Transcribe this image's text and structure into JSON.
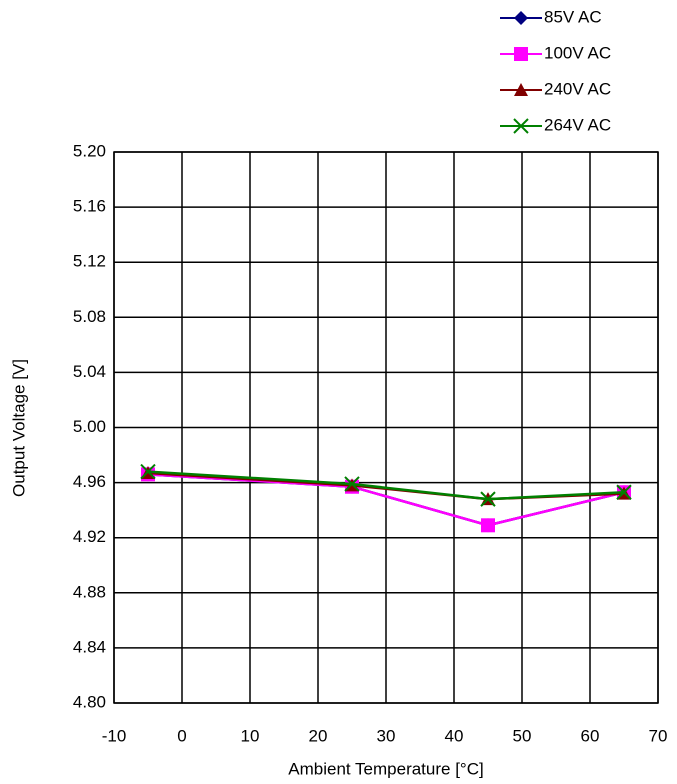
{
  "chart_data": {
    "type": "line",
    "x_label": "Ambient Temperature [°C]",
    "y_label": "Output Voltage [V]",
    "x": [
      -5,
      25,
      45,
      65
    ],
    "series": [
      {
        "name": "85V AC",
        "color": "#000080",
        "marker": "diamond",
        "values": [
          4.966,
          4.957,
          4.929,
          4.953
        ]
      },
      {
        "name": "100V AC",
        "color": "#ff00ff",
        "marker": "square",
        "values": [
          4.966,
          4.957,
          4.929,
          4.953
        ]
      },
      {
        "name": "240V AC",
        "color": "#800000",
        "marker": "triangle",
        "values": [
          4.967,
          4.958,
          4.948,
          4.952
        ]
      },
      {
        "name": "264V AC",
        "color": "#008000",
        "marker": "x",
        "values": [
          4.968,
          4.959,
          4.948,
          4.953
        ]
      }
    ],
    "xlim": [
      -10,
      70
    ],
    "xticks": [
      -10,
      0,
      10,
      20,
      30,
      40,
      50,
      60,
      70
    ],
    "ylim": [
      4.8,
      5.2
    ],
    "yticks": [
      {
        "value": 4.8,
        "label": "4.80"
      },
      4.84,
      4.88,
      4.92,
      4.96,
      {
        "value": 5.0,
        "label": "5.00"
      },
      5.04,
      5.08,
      5.12,
      5.16,
      {
        "value": 5.2,
        "label": "5.20"
      }
    ],
    "grid": true,
    "legend": "top-right"
  }
}
